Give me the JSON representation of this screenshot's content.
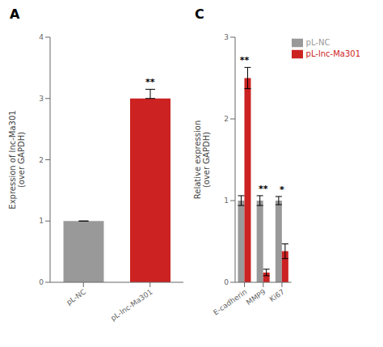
{
  "chart_data": [
    {
      "type": "bar",
      "title": "A",
      "categories": [
        "pL-NC",
        "pL-lnc-Ma301"
      ],
      "values": [
        1.0,
        3.0
      ],
      "errors": [
        0.0,
        0.15
      ],
      "colors": [
        "#999999",
        "#cc2222"
      ],
      "ylabel": "Expression of lnc-Ma301\n(over GAPDH)",
      "ylim": [
        0,
        4
      ],
      "yticks": [
        0,
        1,
        2,
        3,
        4
      ],
      "annotations": [
        "**"
      ]
    },
    {
      "type": "bar",
      "title": "C",
      "categories": [
        "E-cadherin",
        "MMP9",
        "Ki67"
      ],
      "series": [
        {
          "name": "pL-NC",
          "color": "#999999",
          "values": [
            1.0,
            1.0,
            1.0
          ],
          "errors": [
            0.06,
            0.06,
            0.05
          ]
        },
        {
          "name": "pL-lnc-Ma301",
          "color": "#cc2222",
          "values": [
            2.5,
            0.12,
            0.38
          ],
          "errors": [
            0.13,
            0.04,
            0.09
          ]
        }
      ],
      "ylabel": "Relative expression\n(over GAPDH)",
      "ylim": [
        0,
        3
      ],
      "yticks": [
        0,
        1,
        2,
        3
      ],
      "annotations": [
        "**",
        "**",
        "*"
      ],
      "legend": "upper right"
    }
  ]
}
